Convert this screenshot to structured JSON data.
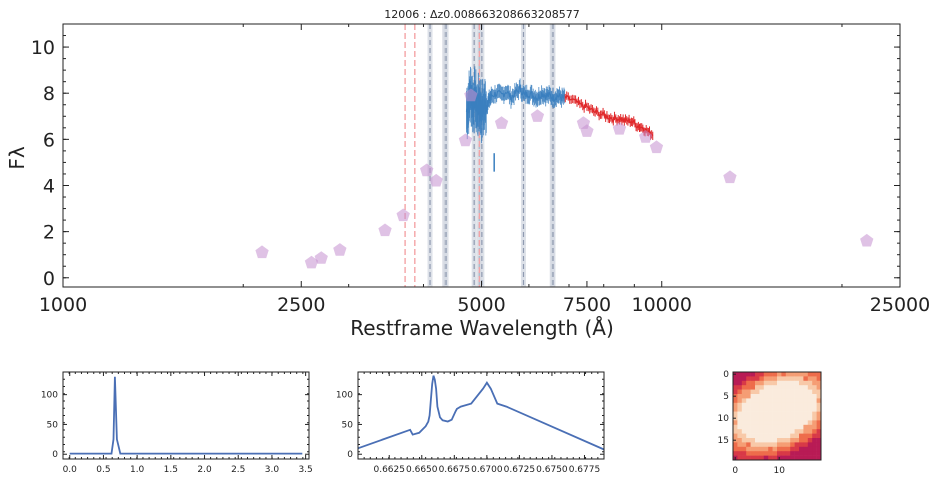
{
  "chart_data": [
    {
      "type": "scatter",
      "title": "12006 : Δz0.008663208663208577",
      "xlabel": "Restframe Wavelength (Å)",
      "ylabel": "Fλ",
      "xscale": "log",
      "xlim": [
        1000,
        25000
      ],
      "ylim": [
        -0.4,
        11
      ],
      "xticks": [
        1000,
        2500,
        5000,
        7500,
        10000,
        25000
      ],
      "xtick_labels": [
        "1000",
        "2500",
        "5000",
        "7500",
        "10000",
        "25000"
      ],
      "yticks": [
        0,
        2,
        4,
        6,
        8,
        10
      ],
      "ytick_labels": [
        "0",
        "2",
        "4",
        "6",
        "8",
        "10"
      ],
      "grid": false,
      "colors": {
        "photometry": "#c48fd0",
        "spec_blue": "#3a7fbf",
        "spec_red": "#e0282a",
        "line_gray": "#8f9ab0",
        "line_red": "#f4a3a6"
      },
      "photometry": {
        "name": "photometry",
        "x": [
          2150,
          2600,
          2700,
          2900,
          3450,
          3700,
          4050,
          4200,
          4700,
          4800,
          5400,
          6200,
          7400,
          7500,
          8500,
          9400,
          9800,
          13000,
          22000
        ],
        "y": [
          1.1,
          0.65,
          0.85,
          1.2,
          2.05,
          2.7,
          4.65,
          4.2,
          5.95,
          7.9,
          6.7,
          7.0,
          6.7,
          6.35,
          6.45,
          6.1,
          5.65,
          4.35,
          1.6
        ]
      },
      "spectrum_blue": {
        "name": "spectrum_blue",
        "x": [
          4720,
          4760,
          4800,
          4840,
          4880,
          4920,
          4960,
          5000,
          5050,
          5100,
          5150,
          5200,
          5300,
          5400,
          5500,
          5600,
          5700,
          5800,
          5900,
          6000,
          6100,
          6200,
          6300,
          6400,
          6500,
          6600,
          6700,
          6800,
          6900
        ],
        "y": [
          7.2,
          7.6,
          8.0,
          7.5,
          7.8,
          7.3,
          7.6,
          7.2,
          7.4,
          7.5,
          7.7,
          7.9,
          8.0,
          7.9,
          8.1,
          7.8,
          8.0,
          8.2,
          7.9,
          8.0,
          7.9,
          7.8,
          8.0,
          7.9,
          7.9,
          7.8,
          7.9,
          7.8,
          7.8
        ]
      },
      "spectrum_red": {
        "name": "spectrum_red",
        "x": [
          6900,
          7100,
          7300,
          7500,
          7700,
          7900,
          8100,
          8300,
          8500,
          8700,
          8900,
          9100,
          9300,
          9500,
          9700
        ],
        "y": [
          7.8,
          7.7,
          7.5,
          7.4,
          7.2,
          7.1,
          7.0,
          6.9,
          6.9,
          6.8,
          6.8,
          6.6,
          6.5,
          6.3,
          6.2
        ]
      },
      "lines_gray": [
        4102,
        4340,
        4363,
        4861,
        4959,
        5007,
        5876,
        6563,
        6583
      ],
      "lines_red": [
        3727,
        3869,
        4959
      ]
    },
    {
      "type": "line",
      "series": [
        {
          "x": [
            0.0,
            0.5,
            0.62,
            0.65,
            0.67,
            0.7,
            0.75,
            1.0,
            2.0,
            3.0,
            3.45
          ],
          "y": [
            1,
            1,
            1,
            25,
            130,
            25,
            1,
            1,
            1,
            1,
            1
          ]
        }
      ],
      "xlim": [
        -0.1,
        3.55
      ],
      "ylim": [
        -8,
        138
      ],
      "xticks": [
        0.0,
        0.5,
        1.0,
        1.5,
        2.0,
        2.5,
        3.0,
        3.5
      ],
      "xtick_labels": [
        "0.0",
        "0.5",
        "1.0",
        "1.5",
        "2.0",
        "2.5",
        "3.0",
        "3.5"
      ],
      "yticks": [
        0,
        50,
        100
      ],
      "ytick_labels": [
        "0",
        "50",
        "100"
      ]
    },
    {
      "type": "line",
      "series": [
        {
          "x": [
            0.6601,
            0.6641,
            0.6643,
            0.6648,
            0.6653,
            0.6655,
            0.6656,
            0.6657,
            0.6658,
            0.6659,
            0.666,
            0.6661,
            0.6662,
            0.6664,
            0.6666,
            0.667,
            0.6673,
            0.6676,
            0.6677,
            0.668,
            0.6688,
            0.6697,
            0.67,
            0.6703,
            0.6708,
            0.6715,
            0.679
          ],
          "y": [
            10,
            41,
            33,
            36,
            47,
            55,
            65,
            92,
            118,
            132,
            125,
            110,
            80,
            62,
            57,
            55,
            58,
            72,
            76,
            80,
            85,
            110,
            120,
            110,
            85,
            80,
            8
          ]
        }
      ],
      "xlim": [
        0.6601,
        0.679
      ],
      "ylim": [
        -8,
        138
      ],
      "xticks": [
        0.6625,
        0.665,
        0.6675,
        0.67,
        0.6725,
        0.675,
        0.6775
      ],
      "xtick_labels": [
        "0.6625",
        "0.6650",
        "0.6675",
        "0.6700",
        "0.6725",
        "0.6750",
        "0.6775"
      ],
      "yticks": [
        0,
        50,
        100
      ],
      "ytick_labels": [
        "0",
        "50",
        "100"
      ]
    },
    {
      "type": "heatmap",
      "size": 20,
      "xticks": [
        0,
        10
      ],
      "xtick_labels": [
        "0",
        "10"
      ],
      "yticks": [
        0,
        5,
        10,
        15
      ],
      "ytick_labels": [
        "0",
        "5",
        "10",
        "15"
      ],
      "colors": [
        "#b81b55",
        "#d83947",
        "#ee6c4b",
        "#f59d74",
        "#f8c9a8",
        "#faebdd"
      ]
    }
  ]
}
